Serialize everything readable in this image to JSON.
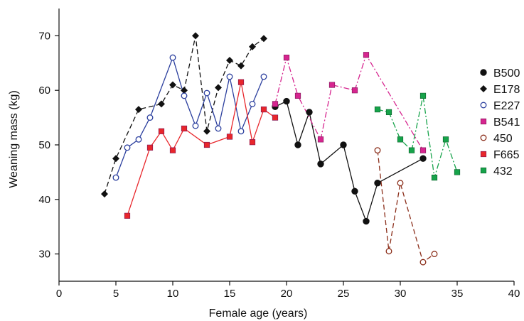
{
  "chart_data": {
    "type": "scatter",
    "title": "",
    "xlabel": "Female age (years)",
    "ylabel": "Weaning mass (kg)",
    "xlim": [
      0,
      40
    ],
    "ylim": [
      25,
      75
    ],
    "xticks": [
      0,
      5,
      10,
      15,
      20,
      25,
      30,
      35,
      40
    ],
    "yticks": [
      30,
      40,
      50,
      60,
      70
    ],
    "grid": false,
    "legend_position": "right",
    "series": [
      {
        "name": "B500",
        "marker": "filled-circle",
        "color": "#111111",
        "line": "solid",
        "points": [
          [
            19,
            57
          ],
          [
            20,
            58
          ],
          [
            21,
            50
          ],
          [
            22,
            56
          ],
          [
            23,
            46.5
          ],
          [
            25,
            50
          ],
          [
            26,
            41.5
          ],
          [
            27,
            36
          ],
          [
            28,
            43
          ],
          [
            32,
            47.5
          ]
        ]
      },
      {
        "name": "E178",
        "marker": "filled-diamond",
        "color": "#111111",
        "line": "dashed",
        "points": [
          [
            4,
            41
          ],
          [
            5,
            47.5
          ],
          [
            7,
            56.5
          ],
          [
            9,
            57.5
          ],
          [
            10,
            61
          ],
          [
            11,
            60
          ],
          [
            12,
            70
          ],
          [
            13,
            52.5
          ],
          [
            14,
            60.5
          ],
          [
            15,
            65.5
          ],
          [
            16,
            64.5
          ],
          [
            17,
            68
          ],
          [
            18,
            69.5
          ]
        ]
      },
      {
        "name": "E227",
        "marker": "open-circle",
        "color": "#2b3f9e",
        "line": "solid",
        "points": [
          [
            5,
            44
          ],
          [
            6,
            49.5
          ],
          [
            7,
            51
          ],
          [
            8,
            55
          ],
          [
            10,
            66
          ],
          [
            11,
            59
          ],
          [
            12,
            53.5
          ],
          [
            13,
            59.5
          ],
          [
            14,
            53
          ],
          [
            15,
            62.5
          ],
          [
            16,
            52.5
          ],
          [
            17,
            57.5
          ],
          [
            18,
            62.5
          ]
        ]
      },
      {
        "name": "B541",
        "marker": "filled-square",
        "color": "#d6258f",
        "line": "dashdot",
        "points": [
          [
            19,
            57.5
          ],
          [
            20,
            66
          ],
          [
            21,
            59
          ],
          [
            23,
            51
          ],
          [
            24,
            61
          ],
          [
            26,
            60
          ],
          [
            27,
            66.5
          ],
          [
            32,
            49
          ]
        ]
      },
      {
        "name": "450",
        "marker": "open-circle",
        "color": "#8b2e1a",
        "line": "dashed",
        "points": [
          [
            28,
            49
          ],
          [
            29,
            30.5
          ],
          [
            30,
            43
          ],
          [
            32,
            28.5
          ],
          [
            33,
            30
          ]
        ]
      },
      {
        "name": "F665",
        "marker": "filled-square",
        "color": "#e8262b",
        "line": "solid",
        "points": [
          [
            6,
            37
          ],
          [
            8,
            49.5
          ],
          [
            9,
            52.5
          ],
          [
            10,
            49
          ],
          [
            11,
            53
          ],
          [
            13,
            50
          ],
          [
            15,
            51.5
          ],
          [
            16,
            61.5
          ],
          [
            17,
            50.5
          ],
          [
            18,
            56.5
          ],
          [
            19,
            55
          ]
        ]
      },
      {
        "name": "432",
        "marker": "filled-square",
        "color": "#16a34a",
        "line": "dashdot",
        "points": [
          [
            28,
            56.5
          ],
          [
            29,
            56
          ],
          [
            30,
            51
          ],
          [
            31,
            49
          ],
          [
            32,
            59
          ],
          [
            33,
            44
          ],
          [
            34,
            51
          ],
          [
            35,
            45
          ]
        ]
      }
    ]
  }
}
